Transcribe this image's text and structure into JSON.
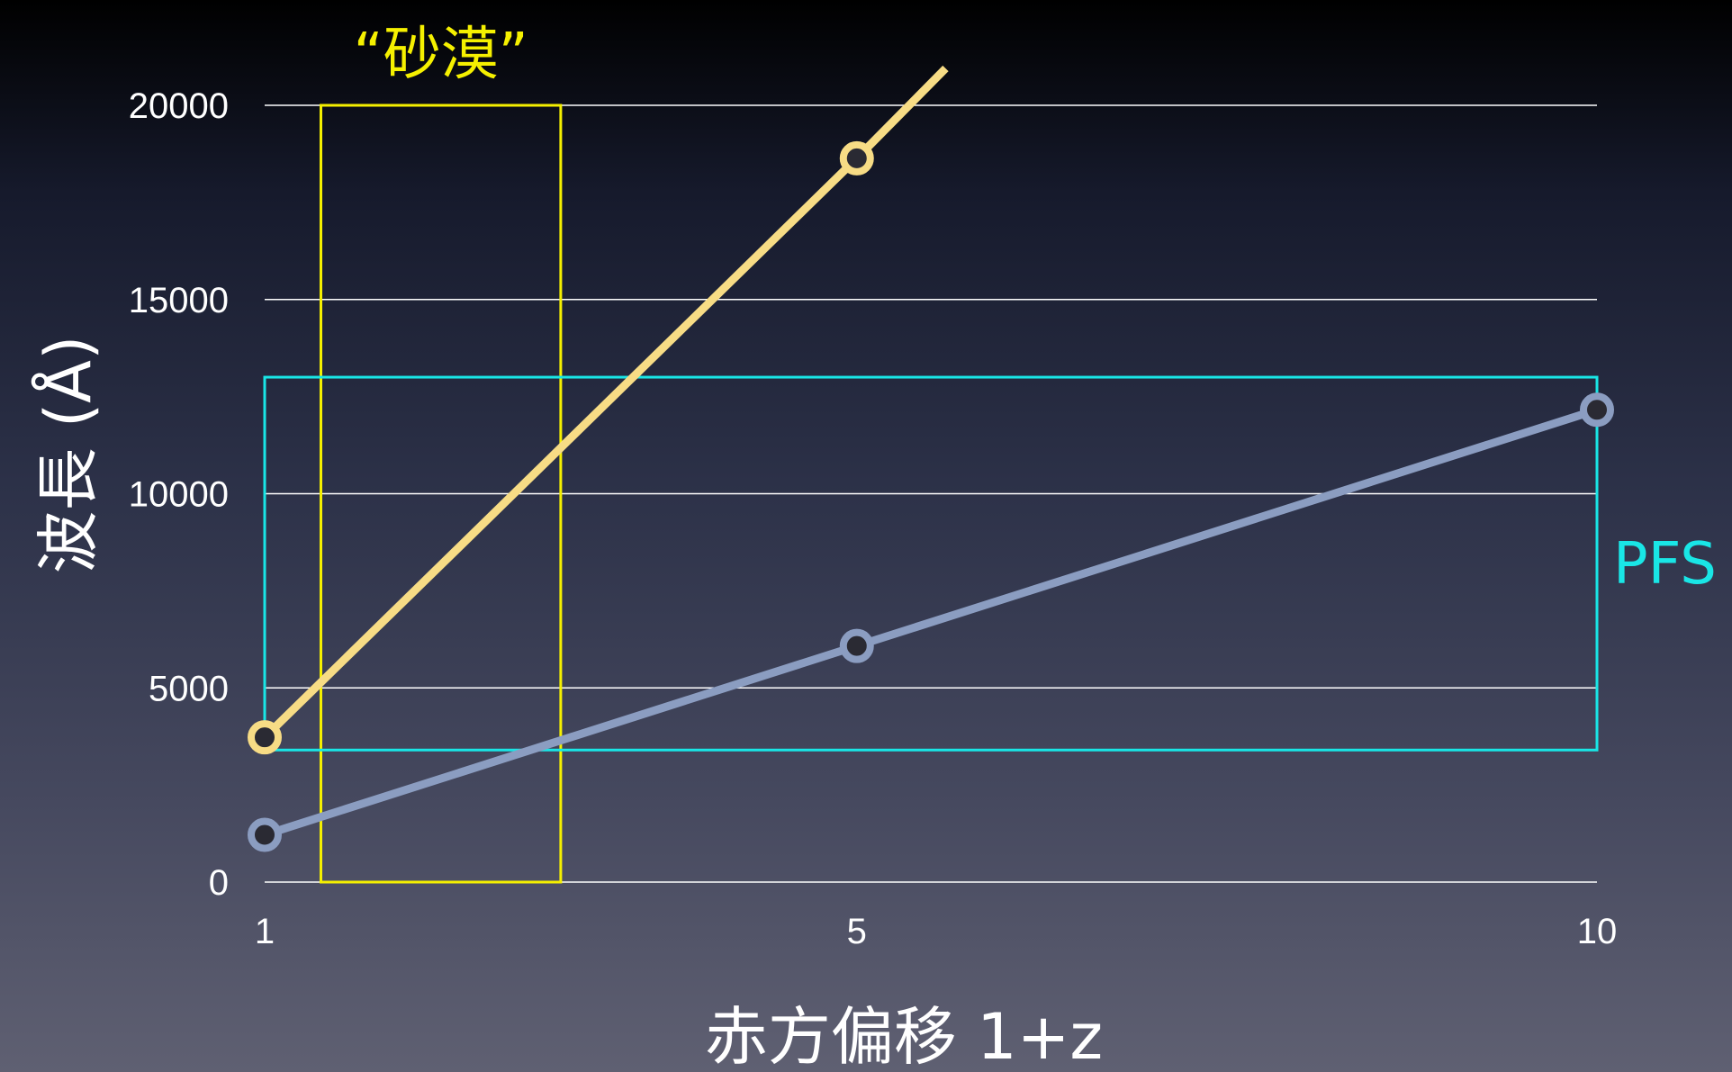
{
  "chart_data": {
    "type": "line",
    "xlabel": "赤方偏移 1+z",
    "ylabel": "波長 (Å)",
    "x_ticks": [
      {
        "value": 1,
        "label": "1"
      },
      {
        "value": 5,
        "label": "5"
      },
      {
        "value": 10,
        "label": "10"
      }
    ],
    "y_ticks": [
      {
        "value": 0,
        "label": "0"
      },
      {
        "value": 5000,
        "label": "5000"
      },
      {
        "value": 10000,
        "label": "10000"
      },
      {
        "value": 15000,
        "label": "15000"
      },
      {
        "value": 20000,
        "label": "20000"
      }
    ],
    "xlim": [
      1,
      10
    ],
    "ylim": [
      0,
      20000
    ],
    "grid": true,
    "series": [
      {
        "color": "#f7dc85",
        "points": [
          [
            1,
            3727
          ],
          [
            5,
            18635
          ]
        ],
        "extends_to": [
          5.6,
          20950
        ]
      },
      {
        "color": "#8b9dc1",
        "points": [
          [
            1,
            1216
          ],
          [
            5,
            6080
          ],
          [
            10,
            12160
          ]
        ]
      }
    ],
    "regions": [
      {
        "label": "“砂漠”",
        "color": "#f5f000",
        "x": [
          1.38,
          3.0
        ],
        "y": [
          0,
          20000
        ]
      },
      {
        "label": "PFS",
        "color": "#19e6e6",
        "x": [
          1,
          10
        ],
        "y": [
          3400,
          13000
        ]
      }
    ]
  }
}
